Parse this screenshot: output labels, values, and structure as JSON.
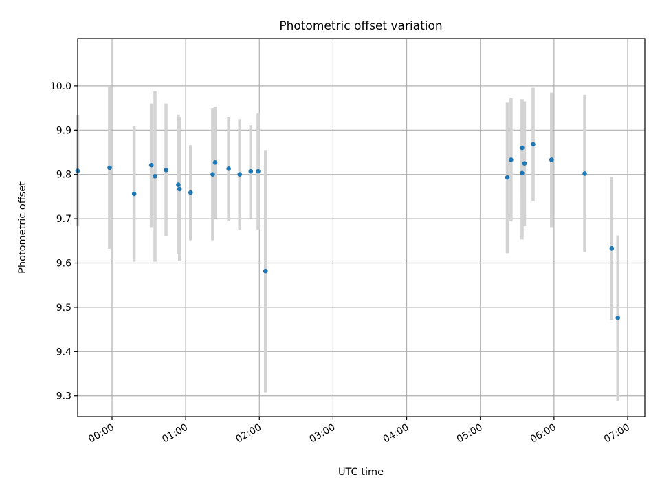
{
  "chart_data": {
    "type": "scatter",
    "title": "Photometric offset variation",
    "xlabel": "UTC time",
    "ylabel": "Photometric offset",
    "x_unit": "UTC time (HH:MM)",
    "xlim": [
      "-00:28",
      "07:14"
    ],
    "ylim": [
      9.253,
      10.107
    ],
    "x_ticks": [
      "00:00",
      "01:00",
      "02:00",
      "03:00",
      "04:00",
      "05:00",
      "06:00",
      "07:00"
    ],
    "y_ticks": [
      9.3,
      9.4,
      9.5,
      9.6,
      9.7,
      9.8,
      9.9,
      10.0
    ],
    "y_tick_labels": [
      "9.3",
      "9.4",
      "9.5",
      "9.6",
      "9.7",
      "9.8",
      "9.9",
      "10.0"
    ],
    "grid": true,
    "legend": "none",
    "colors": {
      "points": "#1f77b4",
      "error_bars": "#d3d3d3",
      "grid": "#b0b0b0"
    },
    "series": [
      {
        "marker": "point",
        "points": [
          {
            "x": "-00:28",
            "y": 9.808,
            "ylow": 9.683,
            "yhigh": 9.933
          },
          {
            "x": "-00:02",
            "y": 9.815,
            "ylow": 9.632,
            "yhigh": 9.998
          },
          {
            "x": "00:18",
            "y": 9.756,
            "ylow": 9.603,
            "yhigh": 9.908
          },
          {
            "x": "00:32",
            "y": 9.821,
            "ylow": 9.681,
            "yhigh": 9.96
          },
          {
            "x": "00:35",
            "y": 9.796,
            "ylow": 9.603,
            "yhigh": 9.988
          },
          {
            "x": "00:44",
            "y": 9.81,
            "ylow": 9.66,
            "yhigh": 9.96
          },
          {
            "x": "00:54",
            "y": 9.777,
            "ylow": 9.62,
            "yhigh": 9.935
          },
          {
            "x": "00:55",
            "y": 9.767,
            "ylow": 9.605,
            "yhigh": 9.93
          },
          {
            "x": "01:04",
            "y": 9.759,
            "ylow": 9.651,
            "yhigh": 9.866
          },
          {
            "x": "01:22",
            "y": 9.8,
            "ylow": 9.651,
            "yhigh": 9.95
          },
          {
            "x": "01:24",
            "y": 9.827,
            "ylow": 9.701,
            "yhigh": 9.953
          },
          {
            "x": "01:35",
            "y": 9.813,
            "ylow": 9.695,
            "yhigh": 9.93
          },
          {
            "x": "01:44",
            "y": 9.8,
            "ylow": 9.675,
            "yhigh": 9.925
          },
          {
            "x": "01:53",
            "y": 9.807,
            "ylow": 9.701,
            "yhigh": 9.911
          },
          {
            "x": "01:59",
            "y": 9.807,
            "ylow": 9.675,
            "yhigh": 9.938
          },
          {
            "x": "02:05",
            "y": 9.582,
            "ylow": 9.308,
            "yhigh": 9.855
          },
          {
            "x": "05:22",
            "y": 9.793,
            "ylow": 9.622,
            "yhigh": 9.962
          },
          {
            "x": "05:25",
            "y": 9.833,
            "ylow": 9.694,
            "yhigh": 9.972
          },
          {
            "x": "05:34",
            "y": 9.803,
            "ylow": 9.653,
            "yhigh": 9.952
          },
          {
            "x": "05:34",
            "y": 9.86,
            "ylow": 9.751,
            "yhigh": 9.97
          },
          {
            "x": "05:36",
            "y": 9.825,
            "ylow": 9.683,
            "yhigh": 9.965
          },
          {
            "x": "05:43",
            "y": 9.868,
            "ylow": 9.74,
            "yhigh": 9.996
          },
          {
            "x": "05:58",
            "y": 9.833,
            "ylow": 9.681,
            "yhigh": 9.985
          },
          {
            "x": "06:25",
            "y": 9.802,
            "ylow": 9.625,
            "yhigh": 9.98
          },
          {
            "x": "06:47",
            "y": 9.633,
            "ylow": 9.472,
            "yhigh": 9.795
          },
          {
            "x": "06:52",
            "y": 9.476,
            "ylow": 9.289,
            "yhigh": 9.662
          }
        ]
      }
    ]
  }
}
